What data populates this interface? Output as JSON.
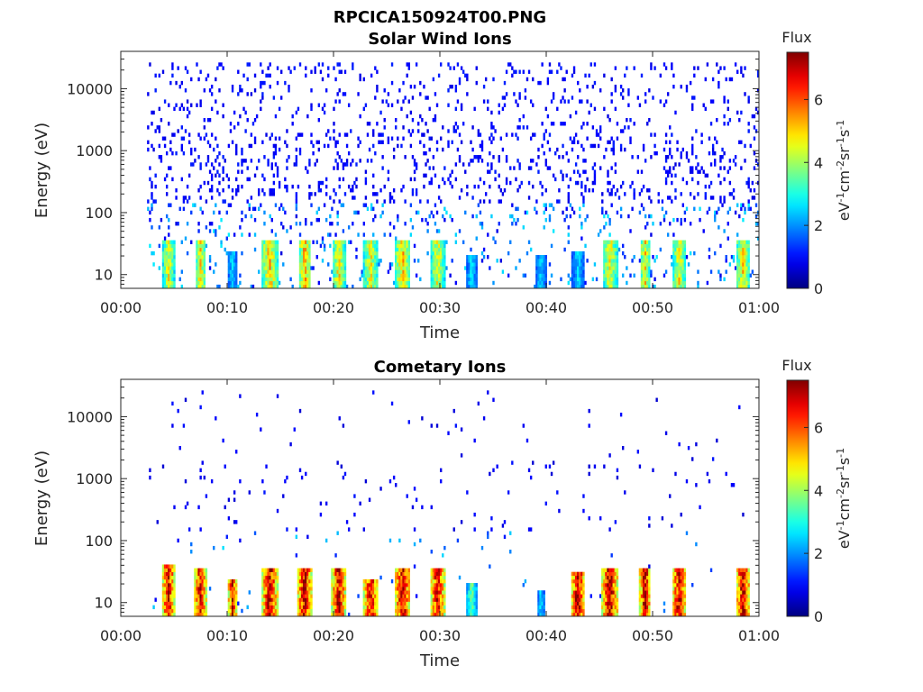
{
  "figure": {
    "filename": "RPCICA150924T00.PNG"
  },
  "chart_data": [
    {
      "type": "heatmap",
      "title": "Solar Wind Ions",
      "xlabel": "Time",
      "ylabel": "Energy (eV)",
      "x_ticks": [
        "00:00",
        "00:10",
        "00:20",
        "00:30",
        "00:40",
        "00:50",
        "01:00"
      ],
      "xlim_minutes": [
        0,
        60
      ],
      "y_ticks": [
        "10",
        "100",
        "1000",
        "10000"
      ],
      "y_scale": "log",
      "ylim": [
        6,
        40000
      ],
      "colorbar": {
        "label": "Flux",
        "unit_label": "eV-1cm-2sr-1s-1",
        "range": [
          0,
          7.5
        ],
        "ticks": [
          "0",
          "2",
          "4",
          "6"
        ],
        "colormap": "jet"
      },
      "bursts": [
        {
          "t": 4.5,
          "w": 1.2,
          "emax": 35,
          "level": 4.5
        },
        {
          "t": 7.5,
          "w": 1.0,
          "emax": 35,
          "level": 4.8
        },
        {
          "t": 10.5,
          "w": 1.0,
          "emax": 25,
          "level": 2.5
        },
        {
          "t": 14.0,
          "w": 1.6,
          "emax": 35,
          "level": 5.0
        },
        {
          "t": 17.3,
          "w": 1.2,
          "emax": 35,
          "level": 5.2
        },
        {
          "t": 20.5,
          "w": 1.2,
          "emax": 35,
          "level": 4.8
        },
        {
          "t": 23.5,
          "w": 1.4,
          "emax": 35,
          "level": 4.6
        },
        {
          "t": 26.5,
          "w": 1.5,
          "emax": 35,
          "level": 5.0
        },
        {
          "t": 29.8,
          "w": 1.3,
          "emax": 35,
          "level": 4.6
        },
        {
          "t": 33.0,
          "w": 1.0,
          "emax": 20,
          "level": 2.6
        },
        {
          "t": 39.5,
          "w": 1.0,
          "emax": 20,
          "level": 2.5
        },
        {
          "t": 43.0,
          "w": 1.2,
          "emax": 25,
          "level": 2.5
        },
        {
          "t": 46.0,
          "w": 1.4,
          "emax": 35,
          "level": 4.6
        },
        {
          "t": 49.3,
          "w": 1.0,
          "emax": 35,
          "level": 4.8
        },
        {
          "t": 52.5,
          "w": 1.3,
          "emax": 35,
          "level": 4.6
        },
        {
          "t": 58.5,
          "w": 1.3,
          "emax": 35,
          "level": 4.8
        }
      ],
      "scatter_density": 0.34,
      "scatter_level": 0.7,
      "seed": 17
    },
    {
      "type": "heatmap",
      "title": "Cometary Ions",
      "xlabel": "Time",
      "ylabel": "Energy (eV)",
      "x_ticks": [
        "00:00",
        "00:10",
        "00:20",
        "00:30",
        "00:40",
        "00:50",
        "01:00"
      ],
      "xlim_minutes": [
        0,
        60
      ],
      "y_ticks": [
        "10",
        "100",
        "1000",
        "10000"
      ],
      "y_scale": "log",
      "ylim": [
        6,
        40000
      ],
      "colorbar": {
        "label": "Flux",
        "unit_label": "eV-1cm-2sr-1s-1",
        "range": [
          0,
          7.5
        ],
        "ticks": [
          "0",
          "2",
          "4",
          "6"
        ],
        "colormap": "jet"
      },
      "bursts": [
        {
          "t": 4.5,
          "w": 1.3,
          "emax": 40,
          "level": 6.8
        },
        {
          "t": 7.5,
          "w": 1.2,
          "emax": 35,
          "level": 6.8
        },
        {
          "t": 10.5,
          "w": 1.0,
          "emax": 25,
          "level": 6.5
        },
        {
          "t": 14.0,
          "w": 1.5,
          "emax": 35,
          "level": 7.0
        },
        {
          "t": 17.3,
          "w": 1.3,
          "emax": 35,
          "level": 7.2
        },
        {
          "t": 20.5,
          "w": 1.3,
          "emax": 35,
          "level": 7.0
        },
        {
          "t": 23.5,
          "w": 1.4,
          "emax": 25,
          "level": 6.8
        },
        {
          "t": 26.5,
          "w": 1.5,
          "emax": 35,
          "level": 7.0
        },
        {
          "t": 29.8,
          "w": 1.3,
          "emax": 35,
          "level": 7.0
        },
        {
          "t": 33.0,
          "w": 1.0,
          "emax": 20,
          "level": 3.5
        },
        {
          "t": 39.5,
          "w": 0.8,
          "emax": 15,
          "level": 2.5
        },
        {
          "t": 43.0,
          "w": 1.3,
          "emax": 30,
          "level": 7.2
        },
        {
          "t": 46.0,
          "w": 1.5,
          "emax": 35,
          "level": 7.2
        },
        {
          "t": 49.3,
          "w": 1.1,
          "emax": 35,
          "level": 7.0
        },
        {
          "t": 52.5,
          "w": 1.3,
          "emax": 35,
          "level": 7.0
        },
        {
          "t": 58.5,
          "w": 1.4,
          "emax": 35,
          "level": 7.0
        }
      ],
      "scatter_density": 0.05,
      "scatter_level": 0.6,
      "seed": 43
    }
  ]
}
